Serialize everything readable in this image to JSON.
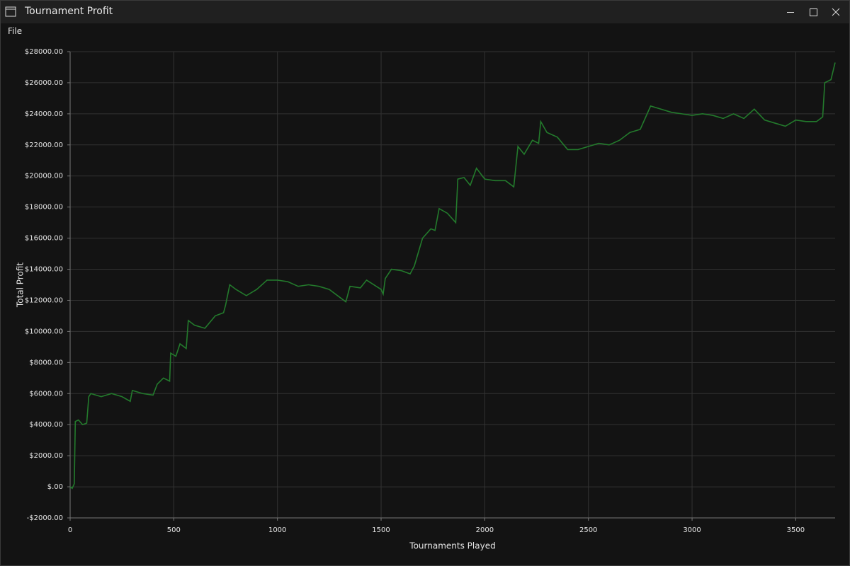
{
  "window": {
    "title": "Tournament Profit"
  },
  "menu": {
    "items": [
      "File"
    ]
  },
  "chart_data": {
    "type": "line",
    "x_label": "Tournaments Played",
    "y_label": "Total Profit",
    "color": "#237a2c",
    "grid": true,
    "x": [
      0,
      10,
      20,
      25,
      40,
      60,
      80,
      90,
      100,
      150,
      200,
      250,
      290,
      300,
      350,
      400,
      420,
      450,
      480,
      485,
      510,
      530,
      560,
      570,
      600,
      650,
      700,
      740,
      750,
      770,
      800,
      850,
      900,
      950,
      1000,
      1050,
      1100,
      1150,
      1200,
      1250,
      1300,
      1330,
      1350,
      1400,
      1430,
      1500,
      1510,
      1520,
      1550,
      1600,
      1640,
      1660,
      1700,
      1740,
      1760,
      1780,
      1820,
      1860,
      1870,
      1900,
      1930,
      1960,
      2000,
      2050,
      2100,
      2140,
      2160,
      2190,
      2230,
      2260,
      2270,
      2300,
      2350,
      2400,
      2450,
      2500,
      2550,
      2600,
      2650,
      2700,
      2750,
      2800,
      2850,
      2900,
      2950,
      3000,
      3050,
      3100,
      3150,
      3200,
      3250,
      3300,
      3350,
      3400,
      3450,
      3500,
      3550,
      3600,
      3630,
      3640,
      3670,
      3690
    ],
    "values": [
      0,
      -100,
      200,
      4200,
      4300,
      4000,
      4100,
      5800,
      6000,
      5800,
      6000,
      5800,
      5500,
      6200,
      6000,
      5900,
      6600,
      7000,
      6800,
      8600,
      8400,
      9200,
      8900,
      10700,
      10400,
      10200,
      11000,
      11200,
      11700,
      13000,
      12700,
      12300,
      12700,
      13300,
      13300,
      13200,
      12900,
      13000,
      12900,
      12700,
      12200,
      11900,
      12900,
      12800,
      13300,
      12700,
      12400,
      13400,
      14000,
      13900,
      13700,
      14200,
      16000,
      16600,
      16500,
      17900,
      17600,
      17000,
      19800,
      19900,
      19400,
      20500,
      19800,
      19700,
      19700,
      19300,
      21900,
      21400,
      22300,
      22100,
      23500,
      22800,
      22500,
      21700,
      21700,
      21900,
      22100,
      22000,
      22300,
      22800,
      23000,
      24500,
      24300,
      24100,
      24000,
      23900,
      24000,
      23900,
      23700,
      24000,
      23700,
      24300,
      23600,
      23400,
      23200,
      23600,
      23500,
      23500,
      23800,
      26000,
      26200,
      27300
    ],
    "xlim": [
      0,
      3690
    ],
    "ylim": [
      -2000,
      28000
    ],
    "xticks": [
      0,
      500,
      1000,
      1500,
      2000,
      2500,
      3000,
      3500
    ],
    "yticks": [
      {
        "value": -2000,
        "label": "-$2000.00"
      },
      {
        "value": 0,
        "label": "$.00"
      },
      {
        "value": 2000,
        "label": "$2000.00"
      },
      {
        "value": 4000,
        "label": "$4000.00"
      },
      {
        "value": 6000,
        "label": "$6000.00"
      },
      {
        "value": 8000,
        "label": "$8000.00"
      },
      {
        "value": 10000,
        "label": "$10000.00"
      },
      {
        "value": 12000,
        "label": "$12000.00"
      },
      {
        "value": 14000,
        "label": "$14000.00"
      },
      {
        "value": 16000,
        "label": "$16000.00"
      },
      {
        "value": 18000,
        "label": "$18000.00"
      },
      {
        "value": 20000,
        "label": "$20000.00"
      },
      {
        "value": 22000,
        "label": "$22000.00"
      },
      {
        "value": 24000,
        "label": "$24000.00"
      },
      {
        "value": 26000,
        "label": "$26000.00"
      },
      {
        "value": 28000,
        "label": "$28000.00"
      }
    ]
  }
}
